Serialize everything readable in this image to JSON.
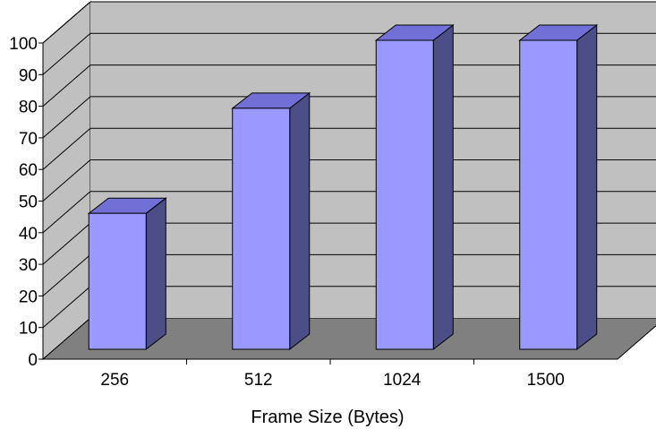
{
  "chart_data": {
    "type": "bar",
    "style": "3d-column",
    "title": "",
    "xlabel": "Frame Size (Bytes)",
    "ylabel": "",
    "categories": [
      "256",
      "512",
      "1024",
      "1500"
    ],
    "values": [
      44,
      78,
      100,
      100
    ],
    "ylim": [
      0,
      100
    ],
    "yticks": [
      "0",
      "10",
      "20",
      "30",
      "40",
      "50",
      "60",
      "70",
      "80",
      "90",
      "100"
    ],
    "grid": true,
    "legend": "none",
    "colors": {
      "bar_front": "#9999ff",
      "bar_side": "#4d4d88",
      "bar_top": "#7070d6",
      "wall": "#c0c0c0",
      "floor": "#808080",
      "gridline": "#000000"
    }
  }
}
